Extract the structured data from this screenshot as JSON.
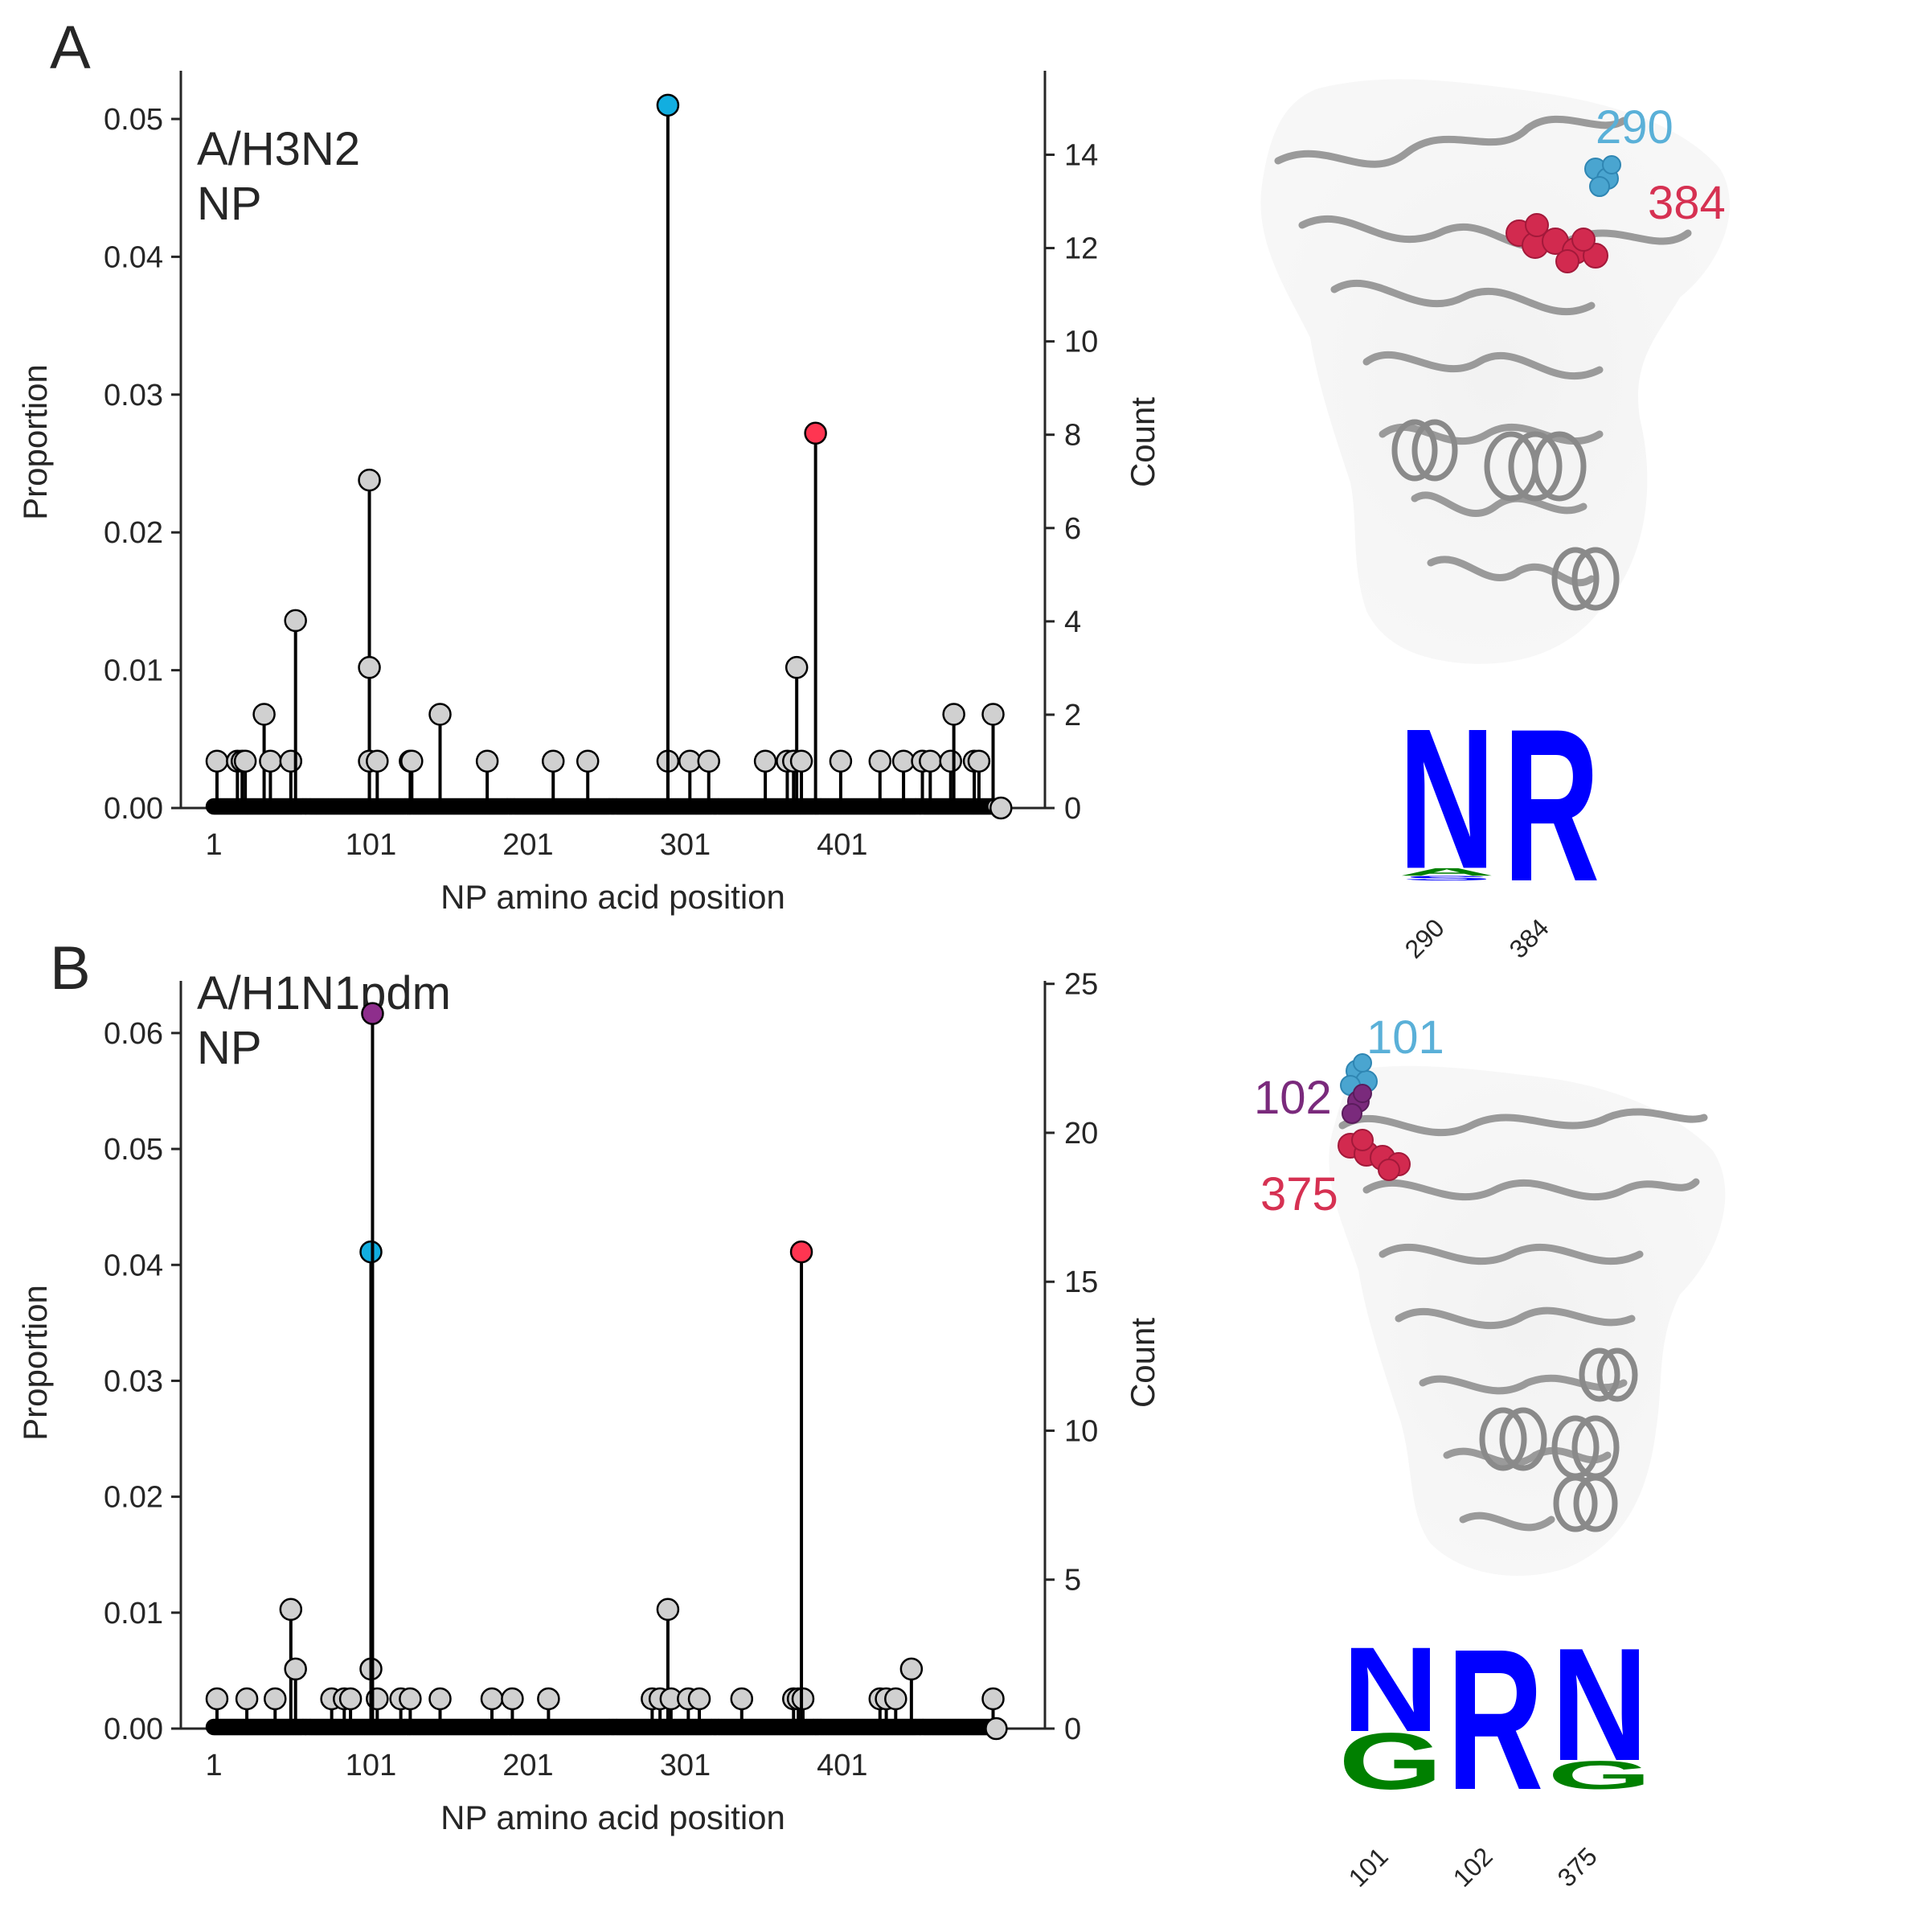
{
  "figure": {
    "panels": [
      "A",
      "B"
    ],
    "shared_xlabel": "NP amino acid position",
    "shared_ylabel_left": "Proportion",
    "shared_ylabel_right": "Count"
  },
  "colors": {
    "default_marker": "#d0d0d0",
    "highlight_blue": "#12aee0",
    "highlight_red": "#ff3551",
    "highlight_purple": "#8e2e8c",
    "label_blue": "#5ab0d8",
    "label_red": "#d63152",
    "label_purple": "#7a2a7c",
    "logo_blue": "#0000ff",
    "logo_green": "#008000"
  },
  "chart_data": [
    {
      "type": "stem",
      "panel_label": "A",
      "title_lines": [
        "A/H3N2",
        "NP"
      ],
      "xlabel": "NP amino acid position",
      "ylabel": "Proportion",
      "ylabel_right": "Count",
      "xlim": [
        -20,
        530
      ],
      "ylim": [
        0,
        0.0535
      ],
      "ylim_right": [
        0,
        15.8
      ],
      "xticks": [
        1,
        101,
        201,
        301,
        401
      ],
      "xtick_labels": [
        "1",
        "101",
        "201",
        "301",
        "401"
      ],
      "yticks": [
        0.0,
        0.01,
        0.02,
        0.03,
        0.04,
        0.05
      ],
      "ytick_labels": [
        "0.00",
        "0.01",
        "0.02",
        "0.03",
        "0.04",
        "0.05"
      ],
      "yticks_right": [
        0,
        2,
        4,
        6,
        8,
        10,
        12,
        14
      ],
      "ytick_labels_right": [
        "0",
        "2",
        "4",
        "6",
        "8",
        "10",
        "12",
        "14"
      ],
      "unit_count": 0.0034,
      "n_positions": 498,
      "points": [
        {
          "x": 3,
          "count": 1
        },
        {
          "x": 16,
          "count": 1
        },
        {
          "x": 19,
          "count": 1
        },
        {
          "x": 21,
          "count": 1
        },
        {
          "x": 33,
          "count": 2
        },
        {
          "x": 37,
          "count": 1
        },
        {
          "x": 50,
          "count": 1
        },
        {
          "x": 53,
          "count": 4
        },
        {
          "x": 100,
          "count": 7
        },
        {
          "x": 100,
          "count": 3
        },
        {
          "x": 100,
          "count": 1
        },
        {
          "x": 105,
          "count": 1
        },
        {
          "x": 126,
          "count": 1
        },
        {
          "x": 127,
          "count": 1
        },
        {
          "x": 145,
          "count": 2
        },
        {
          "x": 175,
          "count": 1
        },
        {
          "x": 217,
          "count": 1
        },
        {
          "x": 239,
          "count": 1
        },
        {
          "x": 290,
          "count": 1
        },
        {
          "x": 290,
          "count": 15,
          "highlight": "blue"
        },
        {
          "x": 304,
          "count": 1
        },
        {
          "x": 316,
          "count": 1
        },
        {
          "x": 352,
          "count": 1
        },
        {
          "x": 366,
          "count": 1
        },
        {
          "x": 370,
          "count": 1
        },
        {
          "x": 372,
          "count": 3
        },
        {
          "x": 375,
          "count": 1
        },
        {
          "x": 384,
          "count": 8,
          "highlight": "red"
        },
        {
          "x": 400,
          "count": 1
        },
        {
          "x": 425,
          "count": 1
        },
        {
          "x": 440,
          "count": 1
        },
        {
          "x": 452,
          "count": 1
        },
        {
          "x": 457,
          "count": 1
        },
        {
          "x": 470,
          "count": 1
        },
        {
          "x": 472,
          "count": 2
        },
        {
          "x": 485,
          "count": 1
        },
        {
          "x": 488,
          "count": 1
        },
        {
          "x": 497,
          "count": 2
        },
        {
          "x": 502,
          "count": 0
        }
      ]
    },
    {
      "type": "stem",
      "panel_label": "B",
      "title_lines": [
        "A/H1N1pdm",
        "NP"
      ],
      "xlabel": "NP amino acid position",
      "ylabel": "Proportion",
      "ylabel_right": "Count",
      "xlim": [
        -20,
        530
      ],
      "ylim": [
        0,
        0.0645
      ],
      "ylim_right": [
        0,
        25.1
      ],
      "xticks": [
        1,
        101,
        201,
        301,
        401
      ],
      "xtick_labels": [
        "1",
        "101",
        "201",
        "301",
        "401"
      ],
      "yticks": [
        0.0,
        0.01,
        0.02,
        0.03,
        0.04,
        0.05,
        0.06
      ],
      "ytick_labels": [
        "0.00",
        "0.01",
        "0.02",
        "0.03",
        "0.04",
        "0.05",
        "0.06"
      ],
      "yticks_right": [
        0,
        5,
        10,
        15,
        20,
        25
      ],
      "ytick_labels_right": [
        "0",
        "5",
        "10",
        "15",
        "20",
        "25"
      ],
      "unit_count": 0.00257,
      "n_positions": 498,
      "points": [
        {
          "x": 3,
          "count": 1
        },
        {
          "x": 22,
          "count": 1
        },
        {
          "x": 40,
          "count": 1
        },
        {
          "x": 50,
          "count": 4
        },
        {
          "x": 53,
          "count": 2
        },
        {
          "x": 76,
          "count": 1
        },
        {
          "x": 84,
          "count": 1
        },
        {
          "x": 88,
          "count": 1
        },
        {
          "x": 101,
          "count": 2
        },
        {
          "x": 101,
          "count": 16,
          "highlight": "blue"
        },
        {
          "x": 102,
          "count": 24,
          "highlight": "purple"
        },
        {
          "x": 105,
          "count": 1
        },
        {
          "x": 120,
          "count": 1
        },
        {
          "x": 126,
          "count": 1
        },
        {
          "x": 145,
          "count": 1
        },
        {
          "x": 178,
          "count": 1
        },
        {
          "x": 191,
          "count": 1
        },
        {
          "x": 214,
          "count": 1
        },
        {
          "x": 280,
          "count": 1
        },
        {
          "x": 285,
          "count": 1
        },
        {
          "x": 290,
          "count": 4
        },
        {
          "x": 292,
          "count": 1
        },
        {
          "x": 303,
          "count": 1
        },
        {
          "x": 310,
          "count": 1
        },
        {
          "x": 337,
          "count": 1
        },
        {
          "x": 370,
          "count": 1
        },
        {
          "x": 373,
          "count": 1
        },
        {
          "x": 375,
          "count": 16,
          "highlight": "red"
        },
        {
          "x": 376,
          "count": 1
        },
        {
          "x": 425,
          "count": 1
        },
        {
          "x": 429,
          "count": 1
        },
        {
          "x": 435,
          "count": 1
        },
        {
          "x": 445,
          "count": 2
        },
        {
          "x": 497,
          "count": 1
        },
        {
          "x": 499,
          "count": 0
        }
      ]
    }
  ],
  "structures": [
    {
      "panel": "A",
      "site_labels": [
        {
          "text": "290",
          "color_key": "label_blue"
        },
        {
          "text": "384",
          "color_key": "label_red"
        }
      ]
    },
    {
      "panel": "B",
      "site_labels": [
        {
          "text": "101",
          "color_key": "label_blue"
        },
        {
          "text": "102",
          "color_key": "label_purple"
        },
        {
          "text": "375",
          "color_key": "label_red"
        }
      ]
    }
  ],
  "logos": [
    {
      "panel": "A",
      "columns": [
        {
          "site": "290",
          "letters": [
            {
              "ch": "N",
              "color_key": "logo_blue",
              "frac": 0.92
            },
            {
              "ch": "A",
              "color_key": "logo_green",
              "frac": 0.05
            },
            {
              "ch": "S",
              "color_key": "logo_blue",
              "frac": 0.03
            }
          ]
        },
        {
          "site": "384",
          "letters": [
            {
              "ch": "R",
              "color_key": "logo_blue",
              "frac": 1.0
            }
          ]
        }
      ]
    },
    {
      "panel": "B",
      "columns": [
        {
          "site": "101",
          "letters": [
            {
              "ch": "N",
              "color_key": "logo_blue",
              "frac": 0.6
            },
            {
              "ch": "G",
              "color_key": "logo_green",
              "frac": 0.4
            }
          ]
        },
        {
          "site": "102",
          "letters": [
            {
              "ch": "R",
              "color_key": "logo_blue",
              "frac": 1.0
            }
          ]
        },
        {
          "site": "375",
          "letters": [
            {
              "ch": "N",
              "color_key": "logo_blue",
              "frac": 0.8
            },
            {
              "ch": "G",
              "color_key": "logo_green",
              "frac": 0.2
            }
          ]
        }
      ]
    }
  ]
}
